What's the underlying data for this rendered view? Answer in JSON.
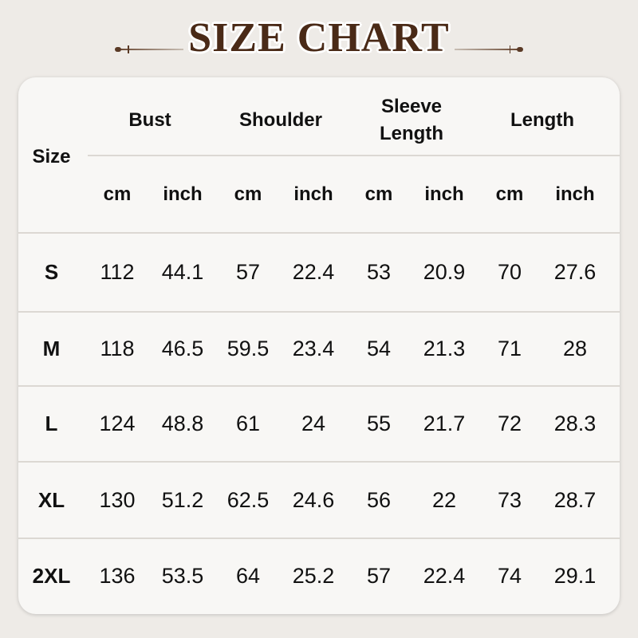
{
  "title": "SIZE CHART",
  "size_header": "Size",
  "groups": [
    "Bust",
    "Shoulder",
    "Sleeve Length",
    "Length"
  ],
  "units": [
    "cm",
    "inch",
    "cm",
    "inch",
    "cm",
    "inch",
    "cm",
    "inch"
  ],
  "rows": [
    {
      "size": "S",
      "values": [
        "112",
        "44.1",
        "57",
        "22.4",
        "53",
        "20.9",
        "70",
        "27.6"
      ]
    },
    {
      "size": "M",
      "values": [
        "118",
        "46.5",
        "59.5",
        "23.4",
        "54",
        "21.3",
        "71",
        "28"
      ]
    },
    {
      "size": "L",
      "values": [
        "124",
        "48.8",
        "61",
        "24",
        "55",
        "21.7",
        "72",
        "28.3"
      ]
    },
    {
      "size": "XL",
      "values": [
        "130",
        "51.2",
        "62.5",
        "24.6",
        "56",
        "22",
        "73",
        "28.7"
      ]
    },
    {
      "size": "2XL",
      "values": [
        "136",
        "53.5",
        "64",
        "25.2",
        "57",
        "22.4",
        "74",
        "29.1"
      ]
    }
  ],
  "colors": {
    "title": "#4a2a17",
    "background": "#eeebe7",
    "card": "#f8f7f5"
  }
}
